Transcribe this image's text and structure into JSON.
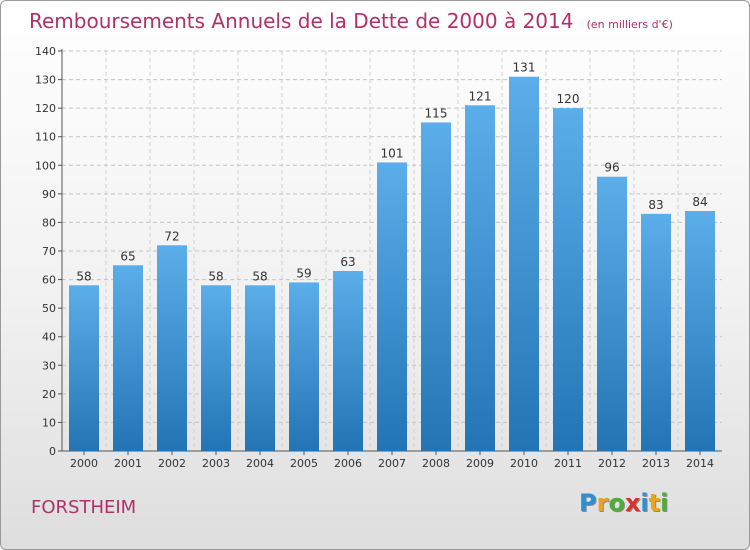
{
  "title": "Remboursements Annuels de la Dette de 2000 à 2014",
  "subtitle": "(en milliers d'€)",
  "commune": "FORSTHEIM",
  "logo": {
    "letters": [
      "P",
      "r",
      "o",
      "x",
      "i",
      "t",
      "i"
    ],
    "colors": [
      "#2d8fd6",
      "#e9a51e",
      "#4caf35",
      "#d8342b",
      "#2d8fd6",
      "#e9a51e",
      "#4caf35"
    ]
  },
  "colors": {
    "bar_top": "#5caeea",
    "bar_bottom": "#2274b4",
    "title": "#b0306a"
  },
  "chart_data": {
    "type": "bar",
    "title": "Remboursements Annuels de la Dette de 2000 à 2014",
    "subtitle": "(en milliers d'€)",
    "categories": [
      "2000",
      "2001",
      "2002",
      "2003",
      "2004",
      "2005",
      "2006",
      "2007",
      "2008",
      "2009",
      "2010",
      "2011",
      "2012",
      "2013",
      "2014"
    ],
    "values": [
      58,
      65,
      72,
      58,
      58,
      59,
      63,
      101,
      115,
      121,
      131,
      120,
      96,
      83,
      84
    ],
    "ylim": [
      0,
      140
    ],
    "yticks": [
      0,
      10,
      20,
      30,
      40,
      50,
      60,
      70,
      80,
      90,
      100,
      110,
      120,
      130,
      140
    ],
    "grid": true,
    "xlabel": "",
    "ylabel": ""
  }
}
